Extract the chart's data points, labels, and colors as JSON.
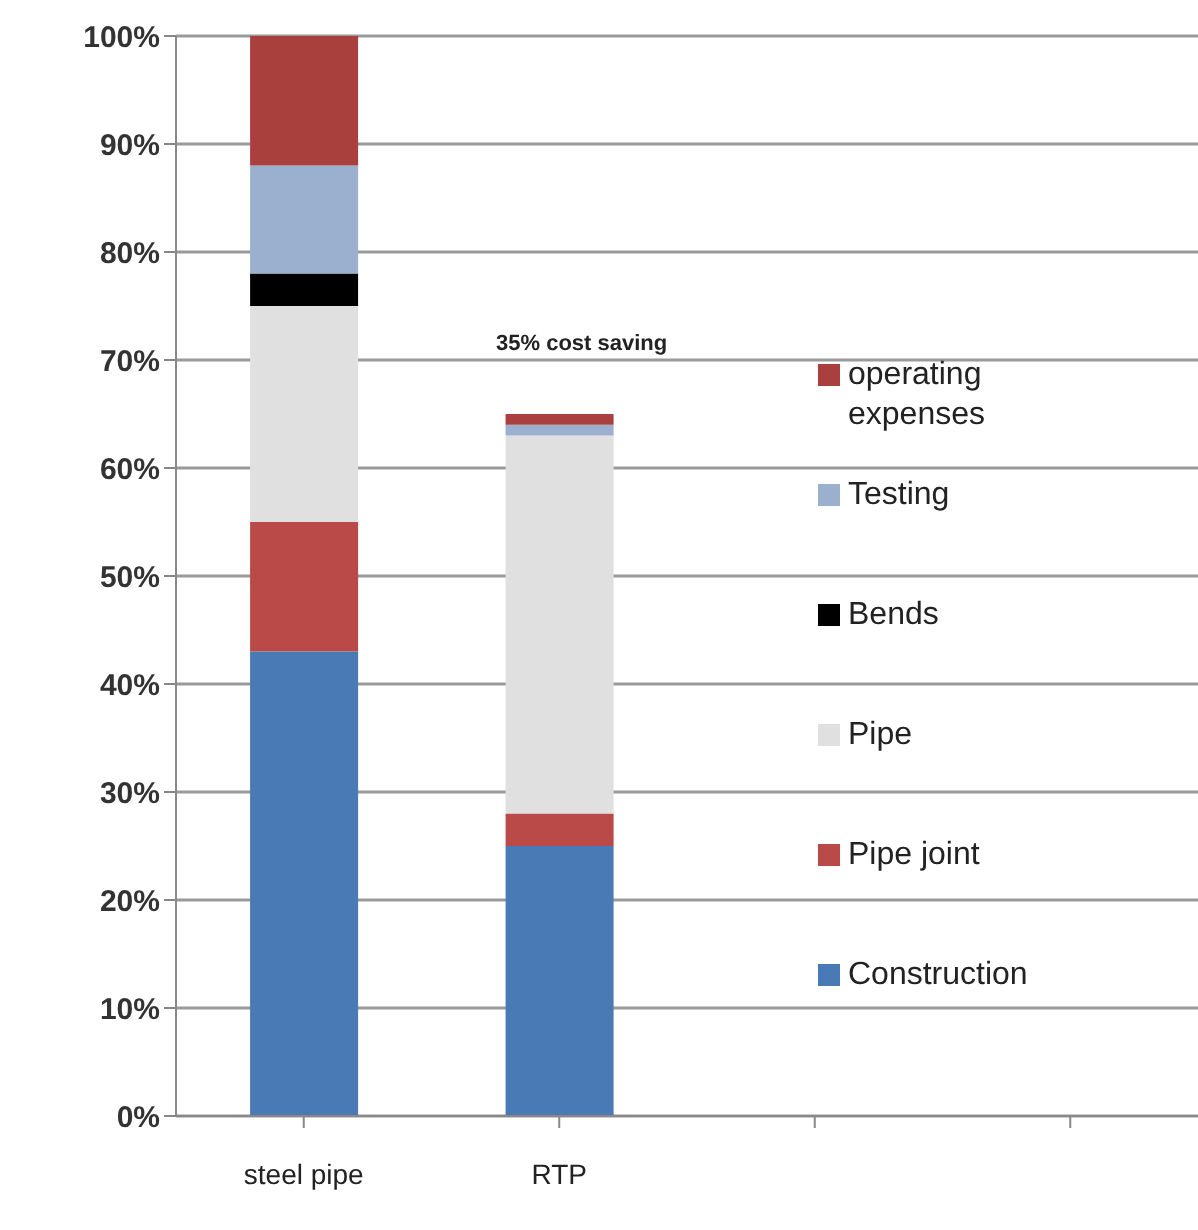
{
  "chart_data": {
    "type": "bar",
    "stacked": true,
    "categories": [
      "steel pipe",
      "RTP",
      null,
      null
    ],
    "series": [
      {
        "name": "Construction",
        "color": "#4a7ab5",
        "values": [
          43,
          25,
          null,
          null
        ]
      },
      {
        "name": "Pipe joint",
        "color": "#b94a48",
        "values": [
          12,
          3,
          null,
          null
        ]
      },
      {
        "name": "Pipe",
        "color": "#e0e0e0",
        "values": [
          20,
          35,
          null,
          null
        ]
      },
      {
        "name": "Bends",
        "color": "#000000",
        "values": [
          3,
          0,
          null,
          null
        ]
      },
      {
        "name": "Testing",
        "color": "#9bb0cf",
        "values": [
          10,
          1,
          null,
          null
        ]
      },
      {
        "name": "operating expenses",
        "color": "#a9403e",
        "values": [
          12,
          1,
          null,
          null
        ]
      }
    ],
    "ylim": [
      0,
      100
    ],
    "yticks": [
      {
        "value": 0,
        "label": "0%"
      },
      {
        "value": 10,
        "label": "10%"
      },
      {
        "value": 20,
        "label": "20%"
      },
      {
        "value": 30,
        "label": "30%"
      },
      {
        "value": 40,
        "label": "40%"
      },
      {
        "value": 50,
        "label": "50%"
      },
      {
        "value": 60,
        "label": "60%"
      },
      {
        "value": 70,
        "label": "70%"
      },
      {
        "value": 80,
        "label": "80%"
      },
      {
        "value": 90,
        "label": "90%"
      },
      {
        "value": 100,
        "label": "100%"
      }
    ],
    "grid": "y",
    "legend": "right",
    "annotations": [
      "35% cost saving"
    ]
  }
}
